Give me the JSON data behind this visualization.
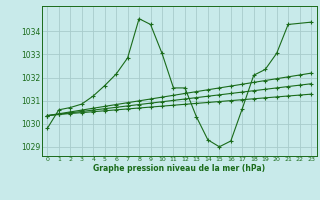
{
  "title": "Graphe pression niveau de la mer (hPa)",
  "background_color": "#c8eaea",
  "grid_color": "#a8cccc",
  "line_color": "#1a6b1a",
  "xlim": [
    -0.5,
    23.5
  ],
  "ylim": [
    1028.6,
    1035.1
  ],
  "yticks": [
    1029,
    1030,
    1031,
    1032,
    1033,
    1034
  ],
  "xticks": [
    0,
    1,
    2,
    3,
    4,
    5,
    6,
    7,
    8,
    9,
    10,
    11,
    12,
    13,
    14,
    15,
    16,
    17,
    18,
    19,
    20,
    21,
    22,
    23
  ],
  "s1_x": [
    0,
    1,
    2,
    3,
    4,
    5,
    6,
    7,
    8,
    9,
    10,
    11,
    12,
    13,
    14,
    15,
    16,
    17,
    18,
    19,
    20,
    21,
    23
  ],
  "s1_y": [
    1029.8,
    1030.6,
    1030.7,
    1030.85,
    1031.2,
    1031.65,
    1032.15,
    1032.85,
    1034.55,
    1034.3,
    1033.05,
    1031.55,
    1031.55,
    1030.3,
    1029.3,
    1029.0,
    1029.25,
    1030.65,
    1032.1,
    1032.35,
    1033.05,
    1034.3,
    1034.4
  ],
  "s2_x": [
    0,
    1,
    2,
    3,
    4,
    5,
    6,
    7,
    8,
    9,
    10,
    11,
    12,
    13,
    14,
    15,
    16,
    17,
    18,
    19,
    20,
    21,
    22,
    23
  ],
  "s2_y": [
    1030.35,
    1030.43,
    1030.51,
    1030.59,
    1030.67,
    1030.75,
    1030.83,
    1030.91,
    1030.99,
    1031.07,
    1031.15,
    1031.23,
    1031.31,
    1031.39,
    1031.47,
    1031.55,
    1031.63,
    1031.71,
    1031.79,
    1031.87,
    1031.95,
    1032.03,
    1032.11,
    1032.19
  ],
  "s3_x": [
    0,
    1,
    2,
    3,
    4,
    5,
    6,
    7,
    8,
    9,
    10,
    11,
    12,
    13,
    14,
    15,
    16,
    17,
    18,
    19,
    20,
    21,
    22,
    23
  ],
  "s3_y": [
    1030.35,
    1030.41,
    1030.47,
    1030.53,
    1030.59,
    1030.65,
    1030.71,
    1030.77,
    1030.83,
    1030.89,
    1030.95,
    1031.01,
    1031.07,
    1031.13,
    1031.19,
    1031.25,
    1031.31,
    1031.37,
    1031.43,
    1031.49,
    1031.55,
    1031.61,
    1031.67,
    1031.73
  ],
  "s4_x": [
    0,
    1,
    2,
    3,
    4,
    5,
    6,
    7,
    8,
    9,
    10,
    11,
    12,
    13,
    14,
    15,
    16,
    17,
    18,
    19,
    20,
    21,
    22,
    23
  ],
  "s4_y": [
    1030.35,
    1030.4,
    1030.44,
    1030.48,
    1030.52,
    1030.56,
    1030.6,
    1030.64,
    1030.68,
    1030.72,
    1030.76,
    1030.8,
    1030.84,
    1030.88,
    1030.92,
    1030.96,
    1031.0,
    1031.04,
    1031.08,
    1031.12,
    1031.16,
    1031.2,
    1031.24,
    1031.28
  ]
}
